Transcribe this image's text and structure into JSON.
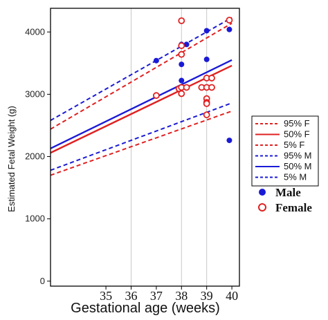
{
  "chart_data": {
    "type": "line",
    "title": "",
    "xlabel": "Gestational age (weeks)",
    "ylabel": "Estimated Fetal Weight (g)",
    "xlim": [
      32.8,
      40.3
    ],
    "ylim": [
      -80,
      4380
    ],
    "x_ticks": [
      35,
      36,
      37,
      38,
      39,
      40
    ],
    "y_ticks": [
      0,
      1000,
      2000,
      3000,
      4000
    ],
    "vertical_reference_lines_x": [
      36,
      38,
      39
    ],
    "grid": false,
    "legend_position": "right",
    "series": [
      {
        "name": "95% F",
        "color": "#e02020",
        "style": "dashed",
        "x": [
          32.8,
          40.0
        ],
        "y": [
          2440,
          4140
        ]
      },
      {
        "name": "50% F",
        "color": "#e02020",
        "style": "solid",
        "x": [
          32.8,
          40.0
        ],
        "y": [
          2060,
          3460
        ]
      },
      {
        "name": "5% F",
        "color": "#e02020",
        "style": "dashed",
        "x": [
          32.8,
          40.0
        ],
        "y": [
          1700,
          2730
        ]
      },
      {
        "name": "95% M",
        "color": "#1a1ad6",
        "style": "dashed",
        "x": [
          32.8,
          40.0
        ],
        "y": [
          2580,
          4230
        ]
      },
      {
        "name": "50% M",
        "color": "#1a1ad6",
        "style": "solid",
        "x": [
          32.8,
          40.0
        ],
        "y": [
          2130,
          3550
        ]
      },
      {
        "name": "5% M",
        "color": "#1a1ad6",
        "style": "dashed",
        "x": [
          32.8,
          40.0
        ],
        "y": [
          1780,
          2860
        ]
      }
    ],
    "points": [
      {
        "name": "Male",
        "color": "#1a1ad6",
        "marker": "filled-circle",
        "x": [
          37,
          38,
          38,
          38,
          38.2,
          39,
          39,
          39.9,
          39.9
        ],
        "y": [
          3540,
          3800,
          3480,
          3220,
          3800,
          4020,
          3560,
          4040,
          2260
        ]
      },
      {
        "name": "Female",
        "color": "#e02020",
        "marker": "open-circle",
        "x": [
          38,
          38,
          38,
          37,
          37.9,
          38,
          38,
          38.2,
          38.8,
          39,
          39.2,
          39,
          39.2,
          39,
          39,
          39,
          39,
          39.9
        ],
        "y": [
          4180,
          3780,
          3640,
          2980,
          3090,
          3010,
          3110,
          3110,
          3110,
          3110,
          3110,
          3260,
          3260,
          2930,
          2870,
          2850,
          2670,
          4190
        ]
      }
    ]
  }
}
